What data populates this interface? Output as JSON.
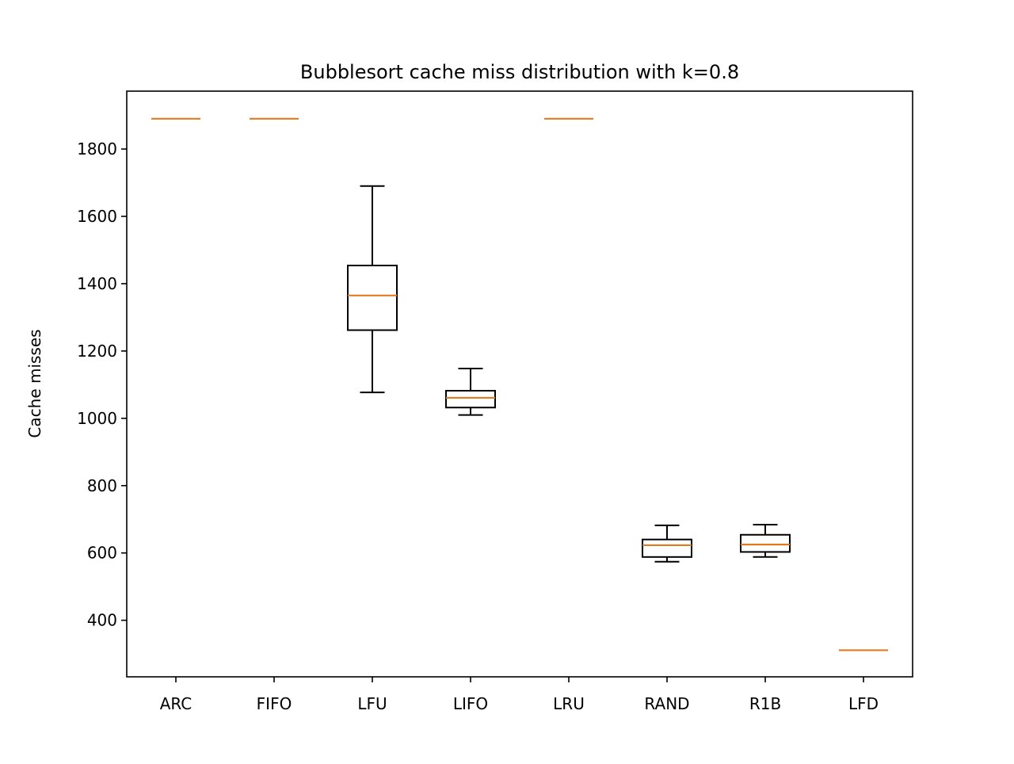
{
  "chart_data": {
    "type": "box",
    "title": "Bubblesort cache miss distribution with k=0.8",
    "xlabel": "",
    "ylabel": "Cache misses",
    "ylim": [
      232,
      1972
    ],
    "yticks": [
      400,
      600,
      800,
      1000,
      1200,
      1400,
      1600,
      1800
    ],
    "grid": false,
    "box_color": "#000000",
    "median_color": "#e07b21",
    "categories": [
      "ARC",
      "FIFO",
      "LFU",
      "LIFO",
      "LRU",
      "RAND",
      "R1B",
      "LFD"
    ],
    "boxes": [
      {
        "label": "ARC",
        "whisker_low": 1890,
        "q1": 1890,
        "median": 1890,
        "q3": 1890,
        "whisker_high": 1890
      },
      {
        "label": "FIFO",
        "whisker_low": 1890,
        "q1": 1890,
        "median": 1890,
        "q3": 1890,
        "whisker_high": 1890
      },
      {
        "label": "LFU",
        "whisker_low": 1077,
        "q1": 1262,
        "median": 1365,
        "q3": 1454,
        "whisker_high": 1690
      },
      {
        "label": "LIFO",
        "whisker_low": 1010,
        "q1": 1032,
        "median": 1061,
        "q3": 1082,
        "whisker_high": 1148
      },
      {
        "label": "LRU",
        "whisker_low": 1890,
        "q1": 1890,
        "median": 1890,
        "q3": 1890,
        "whisker_high": 1890
      },
      {
        "label": "RAND",
        "whisker_low": 574,
        "q1": 588,
        "median": 623,
        "q3": 640,
        "whisker_high": 682
      },
      {
        "label": "R1B",
        "whisker_low": 588,
        "q1": 603,
        "median": 625,
        "q3": 654,
        "whisker_high": 684
      },
      {
        "label": "LFD",
        "whisker_low": 311,
        "q1": 311,
        "median": 311,
        "q3": 311,
        "whisker_high": 311
      }
    ]
  }
}
